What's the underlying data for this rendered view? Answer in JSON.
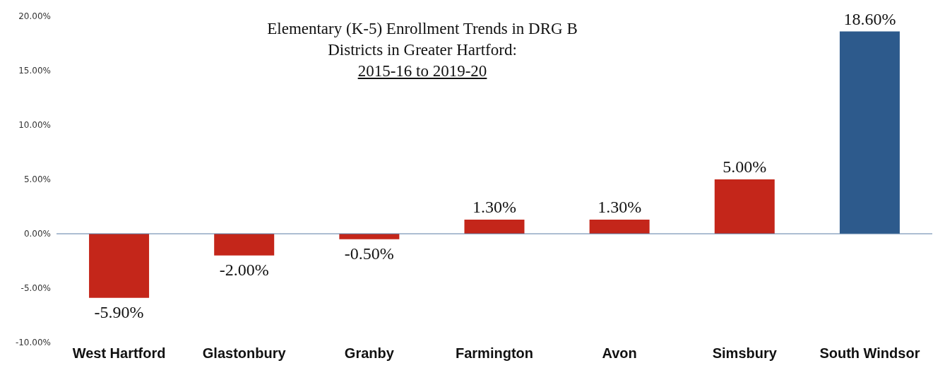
{
  "chart_data": {
    "type": "bar",
    "title": "Elementary (K-5) Enrollment Trends in DRG B Districts in Greater Hartford:",
    "subtitle": "2015-16 to 2019-20",
    "categories": [
      "West Hartford",
      "Glastonbury",
      "Granby",
      "Farmington",
      "Avon",
      "Simsbury",
      "South Windsor"
    ],
    "values": [
      -5.9,
      -2.0,
      -0.5,
      1.3,
      1.3,
      5.0,
      18.6
    ],
    "colors": [
      "#c4261a",
      "#c4261a",
      "#c4261a",
      "#c4261a",
      "#c4261a",
      "#c4261a",
      "#2d5a8c"
    ],
    "value_labels": [
      "-5.90%",
      "-2.00%",
      "-0.50%",
      "1.30%",
      "1.30%",
      "5.00%",
      "18.60%"
    ],
    "ylim": [
      -10,
      20
    ],
    "yticks": [
      {
        "value": -10,
        "label": "-10.00%"
      },
      {
        "value": -5,
        "label": "-5.00%"
      },
      {
        "value": 0,
        "label": "0.00%"
      },
      {
        "value": 5,
        "label": "5.00%"
      },
      {
        "value": 10,
        "label": "10.00%"
      },
      {
        "value": 15,
        "label": "15.00%"
      },
      {
        "value": 20,
        "label": "20.00%"
      }
    ],
    "ref_lines": [
      {
        "axis": "y",
        "value": 0,
        "color": "#5b7fa6"
      }
    ],
    "grid": false
  }
}
